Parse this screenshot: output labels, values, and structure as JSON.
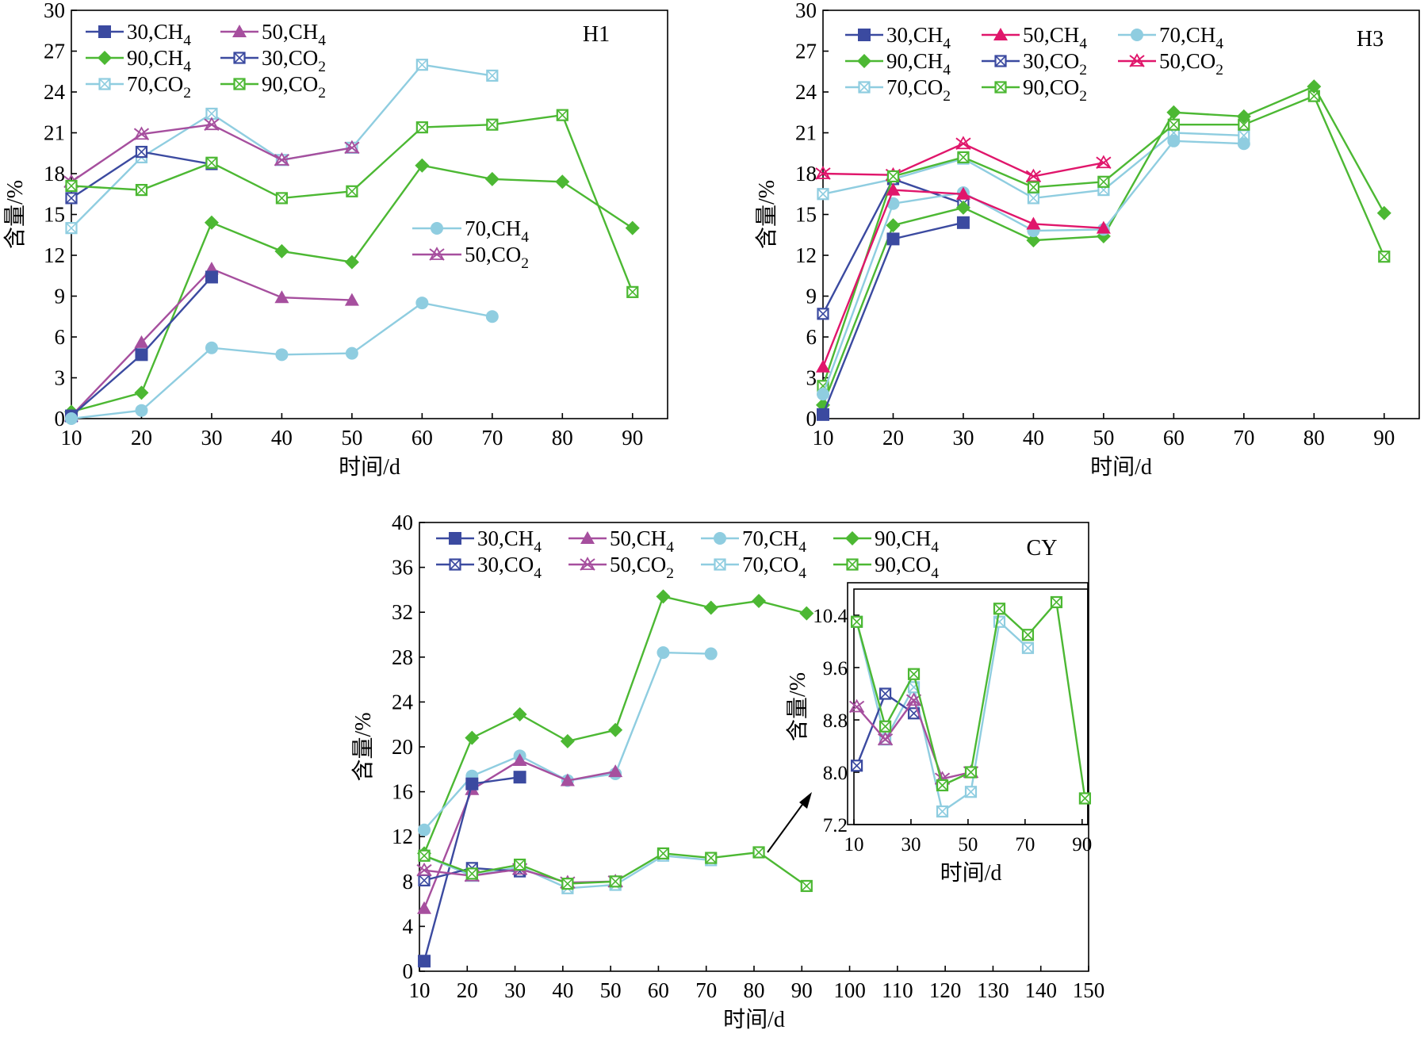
{
  "colors": {
    "c30": "#3b4aa0",
    "c50": "#a64f9e",
    "c70": "#8fcde0",
    "c90": "#4cb833",
    "h3_50co2": "#e0166b",
    "axis": "#000000"
  },
  "chart_data": [
    {
      "panel": "H1",
      "type": "line",
      "title": "H1",
      "xlabel": "时间/d",
      "ylabel": "含量/%",
      "xlim": [
        10,
        95
      ],
      "ylim": [
        0,
        30
      ],
      "xticks": [
        10,
        20,
        30,
        40,
        50,
        60,
        70,
        80,
        90
      ],
      "yticks": [
        0,
        3,
        6,
        9,
        12,
        15,
        18,
        21,
        24,
        27,
        30
      ],
      "legend": [
        {
          "label": "30,CH",
          "sub": "4",
          "series": "30ch4"
        },
        {
          "label": "50,CH",
          "sub": "4",
          "series": "50ch4"
        },
        {
          "label": "90,CH",
          "sub": "4",
          "series": "90ch4"
        },
        {
          "label": "30,CO",
          "sub": "2",
          "series": "30co2"
        },
        {
          "label": "70,CO",
          "sub": "2",
          "series": "70co2"
        },
        {
          "label": "90,CO",
          "sub": "2",
          "series": "90co2"
        }
      ],
      "legend2": [
        {
          "label": "70,CH",
          "sub": "4",
          "series": "70ch4"
        },
        {
          "label": "50,CO",
          "sub": "2",
          "series": "50co2"
        }
      ],
      "series": [
        {
          "id": "70co2",
          "color": "c70",
          "marker": "xsq",
          "x": [
            10,
            20,
            30,
            40,
            50,
            60,
            70
          ],
          "y": [
            14.0,
            19.2,
            22.4,
            19.0,
            19.9,
            26.0,
            25.2
          ]
        },
        {
          "id": "50co2",
          "color": "c50",
          "marker": "xstar",
          "x": [
            10,
            20,
            30,
            40,
            50
          ],
          "y": [
            17.4,
            20.9,
            21.6,
            19.0,
            19.9
          ]
        },
        {
          "id": "30co2",
          "color": "c30",
          "marker": "xsq",
          "x": [
            10,
            20,
            30
          ],
          "y": [
            16.2,
            19.6,
            18.7
          ]
        },
        {
          "id": "90co2",
          "color": "c90",
          "marker": "xsq",
          "x": [
            10,
            20,
            30,
            40,
            50,
            60,
            70,
            80,
            90
          ],
          "y": [
            17.1,
            16.8,
            18.8,
            16.2,
            16.7,
            21.4,
            21.6,
            22.3,
            9.3
          ]
        },
        {
          "id": "90ch4",
          "color": "c90",
          "marker": "diamond",
          "x": [
            10,
            20,
            30,
            40,
            50,
            60,
            70,
            80,
            90
          ],
          "y": [
            0.5,
            1.9,
            14.4,
            12.3,
            11.5,
            18.6,
            17.6,
            17.4,
            14.0
          ]
        },
        {
          "id": "50ch4",
          "color": "c50",
          "marker": "tri",
          "x": [
            10,
            20,
            30,
            40,
            50
          ],
          "y": [
            0.2,
            5.6,
            11.0,
            8.9,
            8.7
          ]
        },
        {
          "id": "30ch4",
          "color": "c30",
          "marker": "sq",
          "x": [
            10,
            20,
            30
          ],
          "y": [
            0.2,
            4.7,
            10.4
          ]
        },
        {
          "id": "70ch4",
          "color": "c70",
          "marker": "circ",
          "x": [
            10,
            20,
            30,
            40,
            50,
            60,
            70
          ],
          "y": [
            0.0,
            0.6,
            5.2,
            4.7,
            4.8,
            8.5,
            7.5
          ]
        }
      ]
    },
    {
      "panel": "H3",
      "type": "line",
      "title": "H3",
      "xlabel": "时间/d",
      "ylabel": "含量/%",
      "xlim": [
        10,
        95
      ],
      "ylim": [
        0,
        30
      ],
      "xticks": [
        10,
        20,
        30,
        40,
        50,
        60,
        70,
        80,
        90
      ],
      "yticks": [
        0,
        3,
        6,
        9,
        12,
        15,
        18,
        21,
        24,
        27,
        30
      ],
      "legend": [
        {
          "label": "30,CH",
          "sub": "4",
          "series": "30ch4"
        },
        {
          "label": "50,CH",
          "sub": "4",
          "series": "50ch4"
        },
        {
          "label": "70,CH",
          "sub": "4",
          "series": "70ch4"
        },
        {
          "label": "90,CH",
          "sub": "4",
          "series": "90ch4"
        },
        {
          "label": "30,CO",
          "sub": "2",
          "series": "30co2"
        },
        {
          "label": "50,CO",
          "sub": "2",
          "series": "50co2"
        },
        {
          "label": "70,CO",
          "sub": "2",
          "series": "70co2"
        },
        {
          "label": "90,CO",
          "sub": "2",
          "series": "90co2"
        }
      ],
      "series": [
        {
          "id": "70co2",
          "color": "c70",
          "marker": "xsq",
          "x": [
            10,
            20,
            30,
            40,
            50,
            60,
            70
          ],
          "y": [
            16.5,
            17.6,
            19.1,
            16.2,
            16.8,
            21.0,
            20.8
          ]
        },
        {
          "id": "50co2",
          "color": "h3_50co2",
          "marker": "xstar",
          "x": [
            10,
            20,
            30,
            40,
            50
          ],
          "y": [
            18.0,
            17.9,
            20.2,
            17.8,
            18.8
          ]
        },
        {
          "id": "30co2",
          "color": "c30",
          "marker": "xsq",
          "x": [
            10,
            20,
            30
          ],
          "y": [
            7.7,
            17.6,
            15.8
          ]
        },
        {
          "id": "90co2",
          "color": "c90",
          "marker": "xsq",
          "x": [
            10,
            20,
            30,
            40,
            50,
            60,
            70,
            80,
            90
          ],
          "y": [
            2.4,
            17.8,
            19.2,
            17.0,
            17.4,
            21.6,
            21.6,
            23.7,
            11.9
          ]
        },
        {
          "id": "90ch4",
          "color": "c90",
          "marker": "diamond",
          "x": [
            10,
            20,
            30,
            40,
            50,
            60,
            70,
            80,
            90
          ],
          "y": [
            1.0,
            14.2,
            15.5,
            13.1,
            13.4,
            22.5,
            22.2,
            24.4,
            15.1
          ]
        },
        {
          "id": "70ch4",
          "color": "c70",
          "marker": "circ",
          "x": [
            10,
            20,
            30,
            40,
            50,
            60,
            70
          ],
          "y": [
            1.8,
            15.8,
            16.6,
            13.8,
            13.9,
            20.4,
            20.2
          ]
        },
        {
          "id": "50ch4",
          "color": "h3_50co2",
          "marker": "tri",
          "x": [
            10,
            20,
            30,
            40,
            50
          ],
          "y": [
            3.8,
            16.8,
            16.5,
            14.3,
            14.0
          ]
        },
        {
          "id": "30ch4",
          "color": "c30",
          "marker": "sq",
          "x": [
            10,
            20,
            30
          ],
          "y": [
            0.3,
            13.2,
            14.4
          ]
        }
      ]
    },
    {
      "panel": "CY",
      "type": "line",
      "title": "CY",
      "xlabel": "时间/d",
      "ylabel": "含量/%",
      "xlim": [
        10,
        150
      ],
      "ylim": [
        0,
        40
      ],
      "xticks": [
        10,
        20,
        30,
        40,
        50,
        60,
        70,
        80,
        90,
        100,
        110,
        120,
        130,
        140,
        150
      ],
      "yticks": [
        0,
        4,
        8,
        12,
        16,
        20,
        24,
        28,
        32,
        36,
        40
      ],
      "legend": [
        {
          "label": "30,CH",
          "sub": "4",
          "series": "30ch4"
        },
        {
          "label": "50,CH",
          "sub": "4",
          "series": "50ch4"
        },
        {
          "label": "70,CH",
          "sub": "4",
          "series": "70ch4"
        },
        {
          "label": "90,CH",
          "sub": "4",
          "series": "90ch4"
        },
        {
          "label": "30,CO",
          "sub": "4",
          "series": "30co2"
        },
        {
          "label": "50,CO",
          "sub": "2",
          "series": "50co2"
        },
        {
          "label": "70,CO",
          "sub": "4",
          "series": "70co2"
        },
        {
          "label": "90,CO",
          "sub": "4",
          "series": "90co2"
        }
      ],
      "series": [
        {
          "id": "90ch4",
          "color": "c90",
          "marker": "diamond",
          "x": [
            11,
            21,
            31,
            41,
            51,
            61,
            71,
            81,
            91
          ],
          "y": [
            10.5,
            20.8,
            22.9,
            20.5,
            21.5,
            33.4,
            32.4,
            33.0,
            31.9
          ]
        },
        {
          "id": "70ch4",
          "color": "c70",
          "marker": "circ",
          "x": [
            11,
            21,
            31,
            41,
            51,
            61,
            71
          ],
          "y": [
            12.6,
            17.4,
            19.2,
            17.0,
            17.6,
            28.4,
            28.3
          ]
        },
        {
          "id": "50ch4",
          "color": "c50",
          "marker": "tri",
          "x": [
            11,
            21,
            31,
            41,
            51
          ],
          "y": [
            5.6,
            16.2,
            18.8,
            17.0,
            17.8
          ]
        },
        {
          "id": "30ch4",
          "color": "c30",
          "marker": "sq",
          "x": [
            11,
            21,
            31
          ],
          "y": [
            0.9,
            16.7,
            17.3
          ]
        },
        {
          "id": "70co2",
          "color": "c70",
          "marker": "xsq",
          "x": [
            11,
            21,
            31,
            41,
            51,
            61,
            71
          ],
          "y": [
            10.3,
            8.5,
            9.3,
            7.4,
            7.7,
            10.3,
            9.9
          ]
        },
        {
          "id": "30co2",
          "color": "c30",
          "marker": "xsq",
          "x": [
            11,
            21,
            31
          ],
          "y": [
            8.1,
            9.2,
            8.9
          ]
        },
        {
          "id": "50co2",
          "color": "c50",
          "marker": "xstar",
          "x": [
            11,
            21,
            31,
            41,
            51
          ],
          "y": [
            9.0,
            8.5,
            9.1,
            7.9,
            8.0
          ]
        },
        {
          "id": "90co2",
          "color": "c90",
          "marker": "xsq",
          "x": [
            11,
            21,
            31,
            41,
            51,
            61,
            71,
            81,
            91
          ],
          "y": [
            10.3,
            8.7,
            9.5,
            7.8,
            8.0,
            10.5,
            10.1,
            10.6,
            7.6
          ]
        }
      ]
    },
    {
      "panel": "CY-inset",
      "type": "line",
      "xlabel": "时间/d",
      "ylabel": "含量/%",
      "xlim": [
        10,
        92
      ],
      "ylim": [
        7.2,
        10.8
      ],
      "xticks": [
        10,
        30,
        50,
        70,
        90
      ],
      "yticks": [
        7.2,
        8.0,
        8.8,
        9.6,
        10.4
      ],
      "ytick_labels": [
        "7.2",
        "8.0",
        "8.8",
        "9.6",
        "10.4"
      ],
      "series": [
        {
          "id": "70co2",
          "color": "c70",
          "marker": "xsq",
          "x": [
            11,
            21,
            31,
            41,
            51,
            61,
            71
          ],
          "y": [
            10.3,
            8.5,
            9.3,
            7.4,
            7.7,
            10.3,
            9.9
          ]
        },
        {
          "id": "30co2",
          "color": "c30",
          "marker": "xsq",
          "x": [
            11,
            21,
            31
          ],
          "y": [
            8.1,
            9.2,
            8.9
          ]
        },
        {
          "id": "50co2",
          "color": "c50",
          "marker": "xstar",
          "x": [
            11,
            21,
            31,
            41,
            51
          ],
          "y": [
            9.0,
            8.5,
            9.1,
            7.9,
            8.0
          ]
        },
        {
          "id": "90co2",
          "color": "c90",
          "marker": "xsq",
          "x": [
            11,
            21,
            31,
            41,
            51,
            61,
            71,
            81,
            91
          ],
          "y": [
            10.3,
            8.7,
            9.5,
            7.8,
            8.0,
            10.5,
            10.1,
            10.6,
            7.6
          ]
        }
      ]
    }
  ]
}
